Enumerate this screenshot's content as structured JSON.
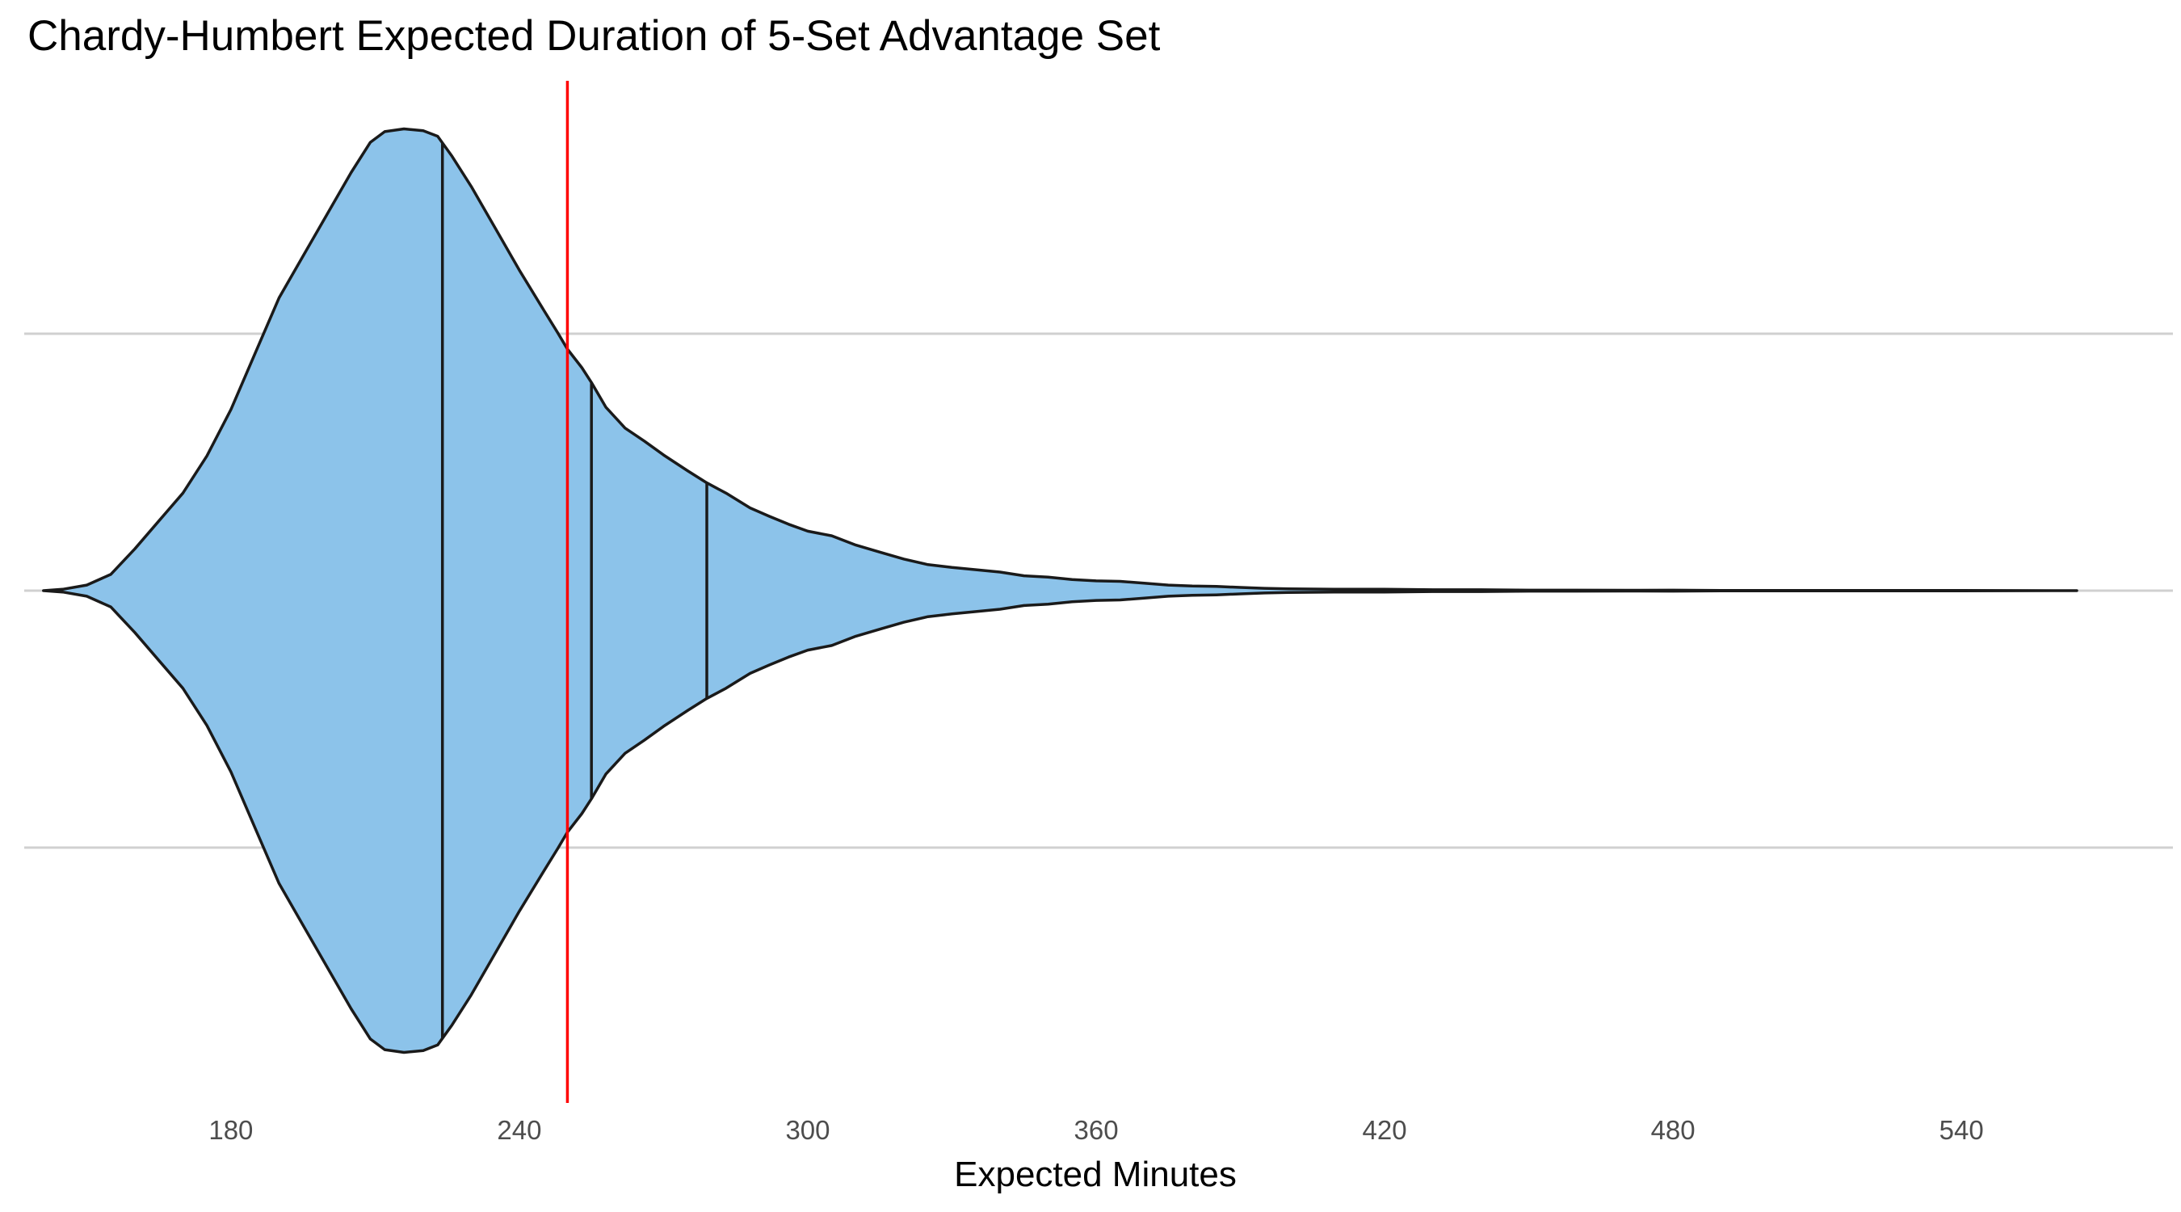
{
  "chart_data": {
    "type": "violin",
    "title": "Chardy-Humbert Expected Duration of 5-Set Advantage Set",
    "xlabel": "Expected Minutes",
    "ylabel": "",
    "xlim": [
      137,
      584
    ],
    "x_ticks": [
      180,
      240,
      300,
      360,
      420,
      480,
      540
    ],
    "range": [
      141,
      564
    ],
    "quantile_lines": [
      {
        "name": "25%",
        "x": 224
      },
      {
        "name": "50%",
        "x": 255
      },
      {
        "name": "75%",
        "x": 279
      }
    ],
    "reference_line": {
      "x": 250,
      "color": "#ff0000"
    },
    "fill_color": "#8cc3ea",
    "outline_color": "#1a1a1a",
    "grid": {
      "major_y": true,
      "major_x": false
    },
    "density": [
      [
        141,
        0.0
      ],
      [
        145,
        0.003
      ],
      [
        150,
        0.012
      ],
      [
        155,
        0.035
      ],
      [
        160,
        0.09
      ],
      [
        165,
        0.15
      ],
      [
        170,
        0.21
      ],
      [
        175,
        0.29
      ],
      [
        180,
        0.39
      ],
      [
        185,
        0.51
      ],
      [
        190,
        0.63
      ],
      [
        195,
        0.72
      ],
      [
        200,
        0.81
      ],
      [
        205,
        0.9
      ],
      [
        209,
        0.965
      ],
      [
        212,
        0.988
      ],
      [
        216,
        0.994
      ],
      [
        220,
        0.99
      ],
      [
        223,
        0.978
      ],
      [
        226,
        0.935
      ],
      [
        230,
        0.87
      ],
      [
        235,
        0.78
      ],
      [
        240,
        0.69
      ],
      [
        245,
        0.605
      ],
      [
        248,
        0.555
      ],
      [
        250,
        0.52
      ],
      [
        253,
        0.48
      ],
      [
        255,
        0.448
      ],
      [
        258,
        0.395
      ],
      [
        262,
        0.35
      ],
      [
        266,
        0.322
      ],
      [
        270,
        0.292
      ],
      [
        275,
        0.258
      ],
      [
        279,
        0.232
      ],
      [
        283,
        0.21
      ],
      [
        288,
        0.178
      ],
      [
        292,
        0.16
      ],
      [
        296,
        0.143
      ],
      [
        300,
        0.128
      ],
      [
        305,
        0.118
      ],
      [
        310,
        0.098
      ],
      [
        315,
        0.083
      ],
      [
        320,
        0.068
      ],
      [
        325,
        0.056
      ],
      [
        330,
        0.05
      ],
      [
        335,
        0.045
      ],
      [
        340,
        0.04
      ],
      [
        345,
        0.032
      ],
      [
        350,
        0.029
      ],
      [
        355,
        0.024
      ],
      [
        360,
        0.021
      ],
      [
        365,
        0.02
      ],
      [
        370,
        0.016
      ],
      [
        375,
        0.012
      ],
      [
        380,
        0.01
      ],
      [
        385,
        0.009
      ],
      [
        390,
        0.007
      ],
      [
        395,
        0.005
      ],
      [
        400,
        0.004
      ],
      [
        410,
        0.003
      ],
      [
        420,
        0.003
      ],
      [
        430,
        0.002
      ],
      [
        440,
        0.002
      ],
      [
        450,
        0.001
      ],
      [
        460,
        0.001
      ],
      [
        470,
        0.0008
      ],
      [
        480,
        0.001
      ],
      [
        490,
        0.0006
      ],
      [
        500,
        0.0005
      ],
      [
        520,
        0.0004
      ],
      [
        540,
        0.0003
      ],
      [
        564,
        0.0
      ]
    ]
  }
}
